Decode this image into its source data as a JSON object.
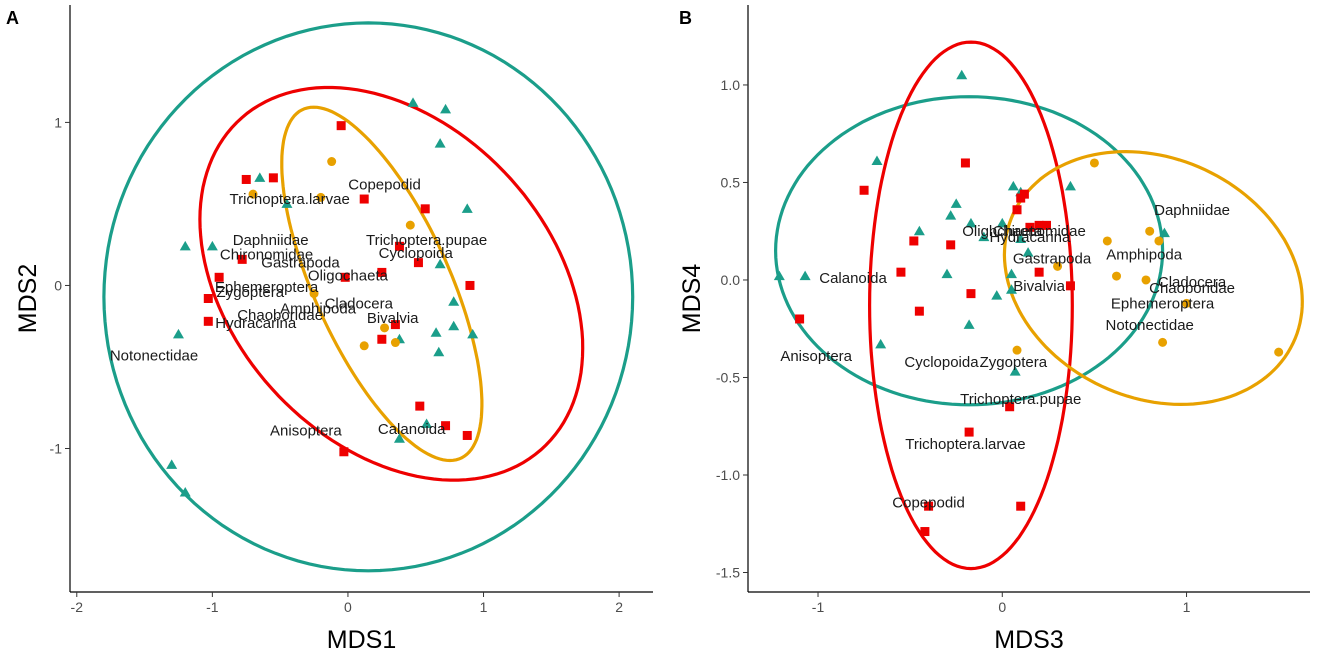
{
  "colors": {
    "teal": "#1b9e8a",
    "red": "#ee0000",
    "orange": "#e8a100"
  },
  "chart_data": [
    {
      "type": "scatter",
      "panel": "A",
      "xlabel": "MDS1",
      "ylabel": "MDS2",
      "xlim": [
        -2.05,
        2.25
      ],
      "ylim": [
        -1.88,
        1.72
      ],
      "xticks": [
        -2,
        -1,
        0,
        1,
        2
      ],
      "yticks": [
        -1,
        0,
        1
      ],
      "grid": false,
      "legend": "none",
      "series": [
        {
          "marker": "triangle",
          "color": "#1b9e8a",
          "points": [
            [
              -0.65,
              0.66
            ],
            [
              -0.45,
              0.5
            ],
            [
              -1.2,
              0.24
            ],
            [
              -1.0,
              0.24
            ],
            [
              -1.25,
              -0.3
            ],
            [
              0.48,
              1.12
            ],
            [
              0.72,
              1.08
            ],
            [
              0.68,
              0.87
            ],
            [
              0.88,
              0.47
            ],
            [
              0.68,
              0.13
            ],
            [
              0.78,
              -0.1
            ],
            [
              0.78,
              -0.25
            ],
            [
              0.65,
              -0.29
            ],
            [
              0.92,
              -0.3
            ],
            [
              0.67,
              -0.41
            ],
            [
              0.38,
              -0.33
            ],
            [
              0.58,
              -0.85
            ],
            [
              0.38,
              -0.94
            ],
            [
              -1.3,
              -1.1
            ],
            [
              -1.2,
              -1.27
            ]
          ]
        },
        {
          "marker": "square",
          "color": "#ee0000",
          "points": [
            [
              -0.75,
              0.65
            ],
            [
              -0.55,
              0.66
            ],
            [
              -0.78,
              0.16
            ],
            [
              -0.95,
              0.05
            ],
            [
              -1.03,
              -0.08
            ],
            [
              -1.03,
              -0.22
            ],
            [
              -0.05,
              0.98
            ],
            [
              0.12,
              0.53
            ],
            [
              0.57,
              0.47
            ],
            [
              0.38,
              0.24
            ],
            [
              0.52,
              0.14
            ],
            [
              0.25,
              0.08
            ],
            [
              -0.02,
              0.05
            ],
            [
              0.9,
              0.0
            ],
            [
              0.35,
              -0.24
            ],
            [
              0.25,
              -0.33
            ],
            [
              0.53,
              -0.74
            ],
            [
              0.72,
              -0.86
            ],
            [
              0.88,
              -0.92
            ],
            [
              -0.03,
              -1.02
            ]
          ]
        },
        {
          "marker": "circle",
          "color": "#e8a100",
          "points": [
            [
              -0.7,
              0.56
            ],
            [
              -0.2,
              0.54
            ],
            [
              -0.12,
              0.76
            ],
            [
              0.46,
              0.37
            ],
            [
              -0.25,
              -0.05
            ],
            [
              0.35,
              -0.35
            ],
            [
              0.12,
              -0.37
            ],
            [
              0.27,
              -0.26
            ]
          ]
        }
      ],
      "ellipses": [
        {
          "color": "#1b9e8a",
          "cx": 0.15,
          "cy": -0.07,
          "rx": 1.95,
          "ry": 1.68,
          "angle_deg": 0
        },
        {
          "color": "#ee0000",
          "cx": 0.32,
          "cy": 0.01,
          "rx": 1.53,
          "ry": 1.05,
          "angle_deg": -32
        },
        {
          "color": "#e8a100",
          "cx": 0.25,
          "cy": 0.01,
          "rx": 1.22,
          "ry": 0.48,
          "angle_deg": -60
        }
      ],
      "labels": [
        {
          "text": "Copepodid",
          "x": 0.27,
          "y": 0.62
        },
        {
          "text": "Trichoptera.larvae",
          "x": -0.43,
          "y": 0.53
        },
        {
          "text": "Daphniidae",
          "x": -0.57,
          "y": 0.28
        },
        {
          "text": "Trichoptera.pupae",
          "x": 0.58,
          "y": 0.28
        },
        {
          "text": "Chironomidae",
          "x": -0.6,
          "y": 0.19
        },
        {
          "text": "Cyclopoida",
          "x": 0.5,
          "y": 0.2
        },
        {
          "text": "Gastrapoda",
          "x": -0.35,
          "y": 0.14
        },
        {
          "text": "Oligochaeta",
          "x": 0.0,
          "y": 0.06
        },
        {
          "text": "Ephemeroptera",
          "x": -0.6,
          "y": -0.01
        },
        {
          "text": "Zygoptera",
          "x": -0.72,
          "y": -0.04
        },
        {
          "text": "Cladocera",
          "x": 0.08,
          "y": -0.11
        },
        {
          "text": "Amphipoda",
          "x": -0.22,
          "y": -0.14
        },
        {
          "text": "Chaoboridae",
          "x": -0.5,
          "y": -0.18
        },
        {
          "text": "Bivalvia",
          "x": 0.33,
          "y": -0.2
        },
        {
          "text": "Hydracarina",
          "x": -0.68,
          "y": -0.23
        },
        {
          "text": "Notonectidae",
          "x": -1.43,
          "y": -0.43
        },
        {
          "text": "Anisoptera",
          "x": -0.31,
          "y": -0.89
        },
        {
          "text": "Calanoida",
          "x": 0.47,
          "y": -0.88
        }
      ]
    },
    {
      "type": "scatter",
      "panel": "B",
      "xlabel": "MDS3",
      "ylabel": "MDS4",
      "xlim": [
        -1.38,
        1.67
      ],
      "ylim": [
        -1.6,
        1.41
      ],
      "xticks": [
        -1,
        0,
        1
      ],
      "yticks": [
        -1.5,
        -1.0,
        -0.5,
        0.0,
        0.5,
        1.0
      ],
      "grid": false,
      "legend": "none",
      "series": [
        {
          "marker": "triangle",
          "color": "#1b9e8a",
          "points": [
            [
              -0.22,
              1.05
            ],
            [
              -0.68,
              0.61
            ],
            [
              -0.45,
              0.25
            ],
            [
              -0.28,
              0.33
            ],
            [
              -0.25,
              0.39
            ],
            [
              0.06,
              0.48
            ],
            [
              0.37,
              0.48
            ],
            [
              0.1,
              0.45
            ],
            [
              0.0,
              0.29
            ],
            [
              0.1,
              0.21
            ],
            [
              0.05,
              0.03
            ],
            [
              0.05,
              -0.05
            ],
            [
              0.14,
              0.14
            ],
            [
              -0.1,
              0.22
            ],
            [
              -0.17,
              0.29
            ],
            [
              -0.3,
              0.03
            ],
            [
              -1.07,
              0.02
            ],
            [
              -1.21,
              0.02
            ],
            [
              -0.66,
              -0.33
            ],
            [
              -0.18,
              -0.23
            ],
            [
              -0.03,
              -0.08
            ],
            [
              0.07,
              -0.47
            ],
            [
              0.88,
              0.24
            ]
          ]
        },
        {
          "marker": "square",
          "color": "#ee0000",
          "points": [
            [
              -0.75,
              0.46
            ],
            [
              -0.2,
              0.6
            ],
            [
              0.1,
              0.42
            ],
            [
              0.12,
              0.44
            ],
            [
              -0.48,
              0.2
            ],
            [
              -0.28,
              0.18
            ],
            [
              0.08,
              0.36
            ],
            [
              0.15,
              0.27
            ],
            [
              0.2,
              0.28
            ],
            [
              0.24,
              0.28
            ],
            [
              -0.55,
              0.04
            ],
            [
              -0.45,
              -0.16
            ],
            [
              -0.17,
              -0.07
            ],
            [
              -1.1,
              -0.2
            ],
            [
              0.2,
              0.04
            ],
            [
              0.37,
              -0.03
            ],
            [
              0.04,
              -0.65
            ],
            [
              -0.18,
              -0.78
            ],
            [
              -0.4,
              -1.16
            ],
            [
              0.1,
              -1.16
            ],
            [
              -0.42,
              -1.29
            ]
          ]
        },
        {
          "marker": "circle",
          "color": "#e8a100",
          "points": [
            [
              0.5,
              0.6
            ],
            [
              0.57,
              0.2
            ],
            [
              0.85,
              0.2
            ],
            [
              0.8,
              0.25
            ],
            [
              0.3,
              0.07
            ],
            [
              0.62,
              0.02
            ],
            [
              0.78,
              0.0
            ],
            [
              1.0,
              -0.12
            ],
            [
              0.87,
              -0.32
            ],
            [
              1.5,
              -0.37
            ],
            [
              0.08,
              -0.36
            ]
          ]
        }
      ],
      "ellipses": [
        {
          "color": "#1b9e8a",
          "cx": -0.18,
          "cy": 0.15,
          "rx": 1.05,
          "ry": 0.79,
          "angle_deg": 0
        },
        {
          "color": "#ee0000",
          "cx": -0.17,
          "cy": -0.13,
          "rx": 0.55,
          "ry": 1.35,
          "angle_deg": 0
        },
        {
          "color": "#e8a100",
          "cx": 0.82,
          "cy": 0.01,
          "rx": 0.83,
          "ry": 0.62,
          "angle_deg": -20
        }
      ],
      "labels": [
        {
          "text": "Daphniidae",
          "x": 1.03,
          "y": 0.36
        },
        {
          "text": "Olighchaeta",
          "x": 0.0,
          "y": 0.25
        },
        {
          "text": "Chironomidae",
          "x": 0.2,
          "y": 0.25
        },
        {
          "text": "Hydracarina",
          "x": 0.15,
          "y": 0.22
        },
        {
          "text": "Amphipoda",
          "x": 0.77,
          "y": 0.13
        },
        {
          "text": "Gastrapoda",
          "x": 0.27,
          "y": 0.11
        },
        {
          "text": "Calanoida",
          "x": -0.81,
          "y": 0.01
        },
        {
          "text": "Cladocera",
          "x": 1.03,
          "y": -0.01
        },
        {
          "text": "Chaoboridae",
          "x": 1.03,
          "y": -0.04
        },
        {
          "text": "Bivalvia",
          "x": 0.2,
          "y": -0.03
        },
        {
          "text": "Ephemeroptera",
          "x": 0.87,
          "y": -0.12
        },
        {
          "text": "Notonectidae",
          "x": 0.8,
          "y": -0.23
        },
        {
          "text": "Anisoptera",
          "x": -1.01,
          "y": -0.39
        },
        {
          "text": "Cyclopoida",
          "x": -0.33,
          "y": -0.42
        },
        {
          "text": "Zygoptera",
          "x": 0.06,
          "y": -0.42
        },
        {
          "text": "Trichoptera.pupae",
          "x": 0.1,
          "y": -0.61
        },
        {
          "text": "Trichoptera.larvae",
          "x": -0.2,
          "y": -0.84
        },
        {
          "text": "Copepodid",
          "x": -0.4,
          "y": -1.14
        }
      ]
    }
  ]
}
